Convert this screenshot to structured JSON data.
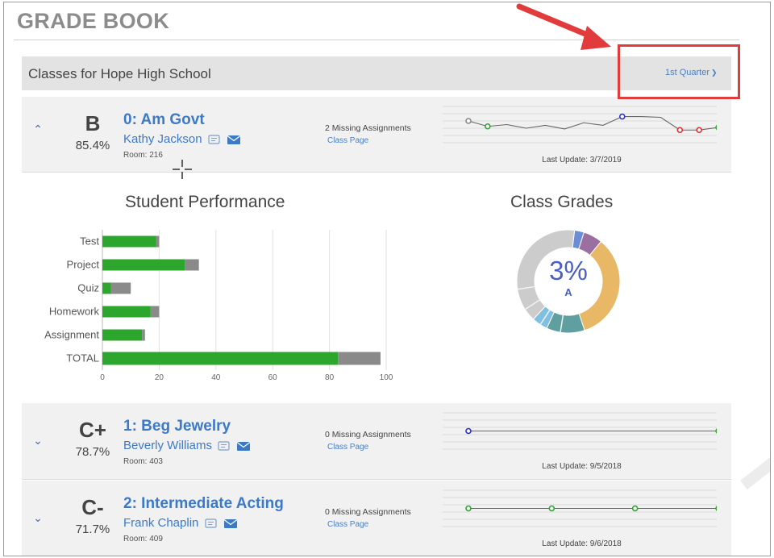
{
  "page": {
    "title": "GRADE BOOK"
  },
  "school_bar": {
    "name": "Classes for Hope High School",
    "quarter": "1st Quarter"
  },
  "colors": {
    "link": "#3d7ac6",
    "bar_green": "#2ca62c",
    "bar_gray": "#8a8a8a",
    "highlight": "#e23b3b",
    "donut_center": "#4a5fc1"
  },
  "classes": [
    {
      "expanded": true,
      "grade": "B",
      "percent": "85.4%",
      "name": "0: Am Govt",
      "teacher": "Kathy Jackson",
      "room": "Room: 216",
      "missing": "2 Missing Assignments",
      "class_page": "Class Page",
      "last_update": "Last Update: 3/7/2019",
      "trend": [
        {
          "v": 0.6,
          "c": "gray"
        },
        {
          "v": 0.45,
          "c": "green"
        },
        {
          "v": 0.5,
          "c": "none"
        },
        {
          "v": 0.4,
          "c": "none"
        },
        {
          "v": 0.48,
          "c": "none"
        },
        {
          "v": 0.38,
          "c": "none"
        },
        {
          "v": 0.55,
          "c": "none"
        },
        {
          "v": 0.48,
          "c": "none"
        },
        {
          "v": 0.72,
          "c": "blue"
        },
        {
          "v": 0.72,
          "c": "none"
        },
        {
          "v": 0.7,
          "c": "none"
        },
        {
          "v": 0.35,
          "c": "red"
        },
        {
          "v": 0.35,
          "c": "red"
        },
        {
          "v": 0.42,
          "c": "green"
        }
      ]
    },
    {
      "expanded": false,
      "grade": "C+",
      "percent": "78.7%",
      "name": "1: Beg Jewelry",
      "teacher": "Beverly Williams",
      "room": "Room: 403",
      "missing": "0 Missing Assignments",
      "class_page": "Class Page",
      "last_update": "Last Update: 9/5/2018",
      "trend": [
        {
          "v": 0.5,
          "c": "blue"
        },
        {
          "v": 0.5,
          "c": "green"
        }
      ]
    },
    {
      "expanded": false,
      "grade": "C-",
      "percent": "71.7%",
      "name": "2: Intermediate Acting",
      "teacher": "Frank Chaplin",
      "room": "Room: 409",
      "missing": "0 Missing Assignments",
      "class_page": "Class Page",
      "last_update": "Last Update: 9/6/2018",
      "trend": [
        {
          "v": 0.5,
          "c": "green"
        },
        {
          "v": 0.5,
          "c": "green"
        },
        {
          "v": 0.5,
          "c": "green"
        },
        {
          "v": 0.5,
          "c": "green"
        }
      ]
    }
  ],
  "chart_data": [
    {
      "type": "bar",
      "title": "Student Performance",
      "orientation": "horizontal",
      "stacked": true,
      "categories": [
        "Test",
        "Project",
        "Quiz",
        "Homework",
        "Assignment",
        "TOTAL"
      ],
      "series": [
        {
          "values": [
            19,
            29,
            3,
            17,
            14,
            83
          ],
          "color": "#2ca62c"
        },
        {
          "values": [
            1,
            5,
            7,
            3,
            1,
            15
          ],
          "color": "#8a8a8a"
        }
      ],
      "xlim": [
        0,
        100
      ],
      "xticks": [
        "0",
        "20",
        "40",
        "60",
        "80",
        "100"
      ],
      "grid": true
    },
    {
      "type": "pie",
      "title": "Class Grades",
      "donut": true,
      "center_value": "3%",
      "center_label": "A",
      "slices": [
        {
          "value": 3,
          "color": "#6b8cd6"
        },
        {
          "value": 6,
          "color": "#9b6f9f"
        },
        {
          "value": 34,
          "color": "#e8b866"
        },
        {
          "value": 12,
          "color": "#5f9f9f"
        },
        {
          "value": 5,
          "color": "#7fbfe0"
        },
        {
          "value": 40,
          "color": "#cccccc"
        }
      ]
    }
  ]
}
